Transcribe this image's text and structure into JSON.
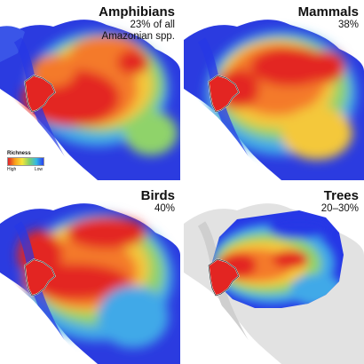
{
  "panels": [
    {
      "id": "amphibians",
      "title": "Amphibians",
      "subtitle_line1": "23% of all",
      "subtitle_line2": "Amazonian spp."
    },
    {
      "id": "mammals",
      "title": "Mammals",
      "subtitle_line1": "38%",
      "subtitle_line2": ""
    },
    {
      "id": "birds",
      "title": "Birds",
      "subtitle_line1": "40%",
      "subtitle_line2": ""
    },
    {
      "id": "trees",
      "title": "Trees",
      "subtitle_line1": "20–30%",
      "subtitle_line2": ""
    }
  ],
  "legend": {
    "title": "Richness",
    "high_label": "High",
    "low_label": "Low",
    "colors": [
      "#e0202a",
      "#f7a11a",
      "#f7e53a",
      "#7fd06a",
      "#33b8e6",
      "#2a3ff0"
    ]
  },
  "colors": {
    "high": "#e32522",
    "mid_high": "#f47a2a",
    "mid": "#f4c83a",
    "mid_low": "#8fd36a",
    "low": "#3fa9e8",
    "very_low": "#2637e6",
    "land_background": "#e7e7e7",
    "ocean": "#ffffff",
    "region_outline": "#ffffff"
  }
}
